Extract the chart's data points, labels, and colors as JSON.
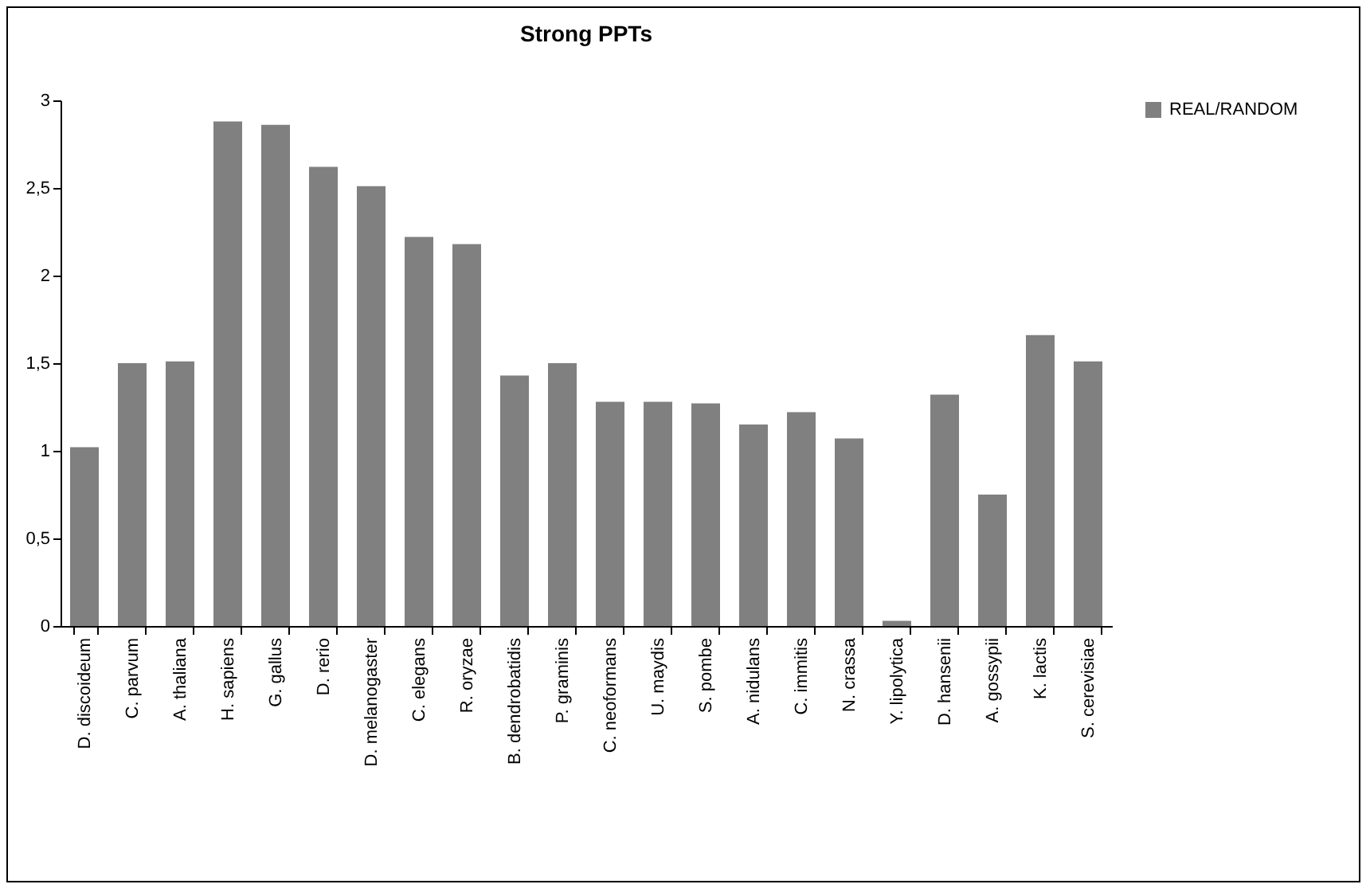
{
  "chart_data": {
    "type": "bar",
    "title": "Strong PPTs",
    "categories": [
      "D. discoideum",
      "C. parvum",
      "A. thaliana",
      "H. sapiens",
      "G. gallus",
      "D. rerio",
      "D. melanogaster",
      "C. elegans",
      "R. oryzae",
      "B. dendrobatidis",
      "P. graminis",
      "C. neoformans",
      "U. maydis",
      "S. pombe",
      "A. nidulans",
      "C. immitis",
      "N. crassa",
      "Y. lipolytica",
      "D. hansenii",
      "A. gossypii",
      "K. lactis",
      "S. cerevisiae"
    ],
    "series": [
      {
        "name": "REAL/RANDOM",
        "color": "#808080",
        "values": [
          1.02,
          1.5,
          1.51,
          2.88,
          2.86,
          2.62,
          2.51,
          2.22,
          2.18,
          1.43,
          1.5,
          1.28,
          1.28,
          1.27,
          1.15,
          1.22,
          1.07,
          0.03,
          1.32,
          0.75,
          1.66,
          1.51
        ]
      }
    ],
    "ylim": [
      0,
      3
    ],
    "yticks": [
      0,
      {
        "value": 0.5,
        "label": "0,5"
      },
      1,
      {
        "value": 1.5,
        "label": "1,5"
      },
      2,
      {
        "value": 2.5,
        "label": "2,5"
      },
      3
    ],
    "grid": false,
    "legend": "top right"
  }
}
